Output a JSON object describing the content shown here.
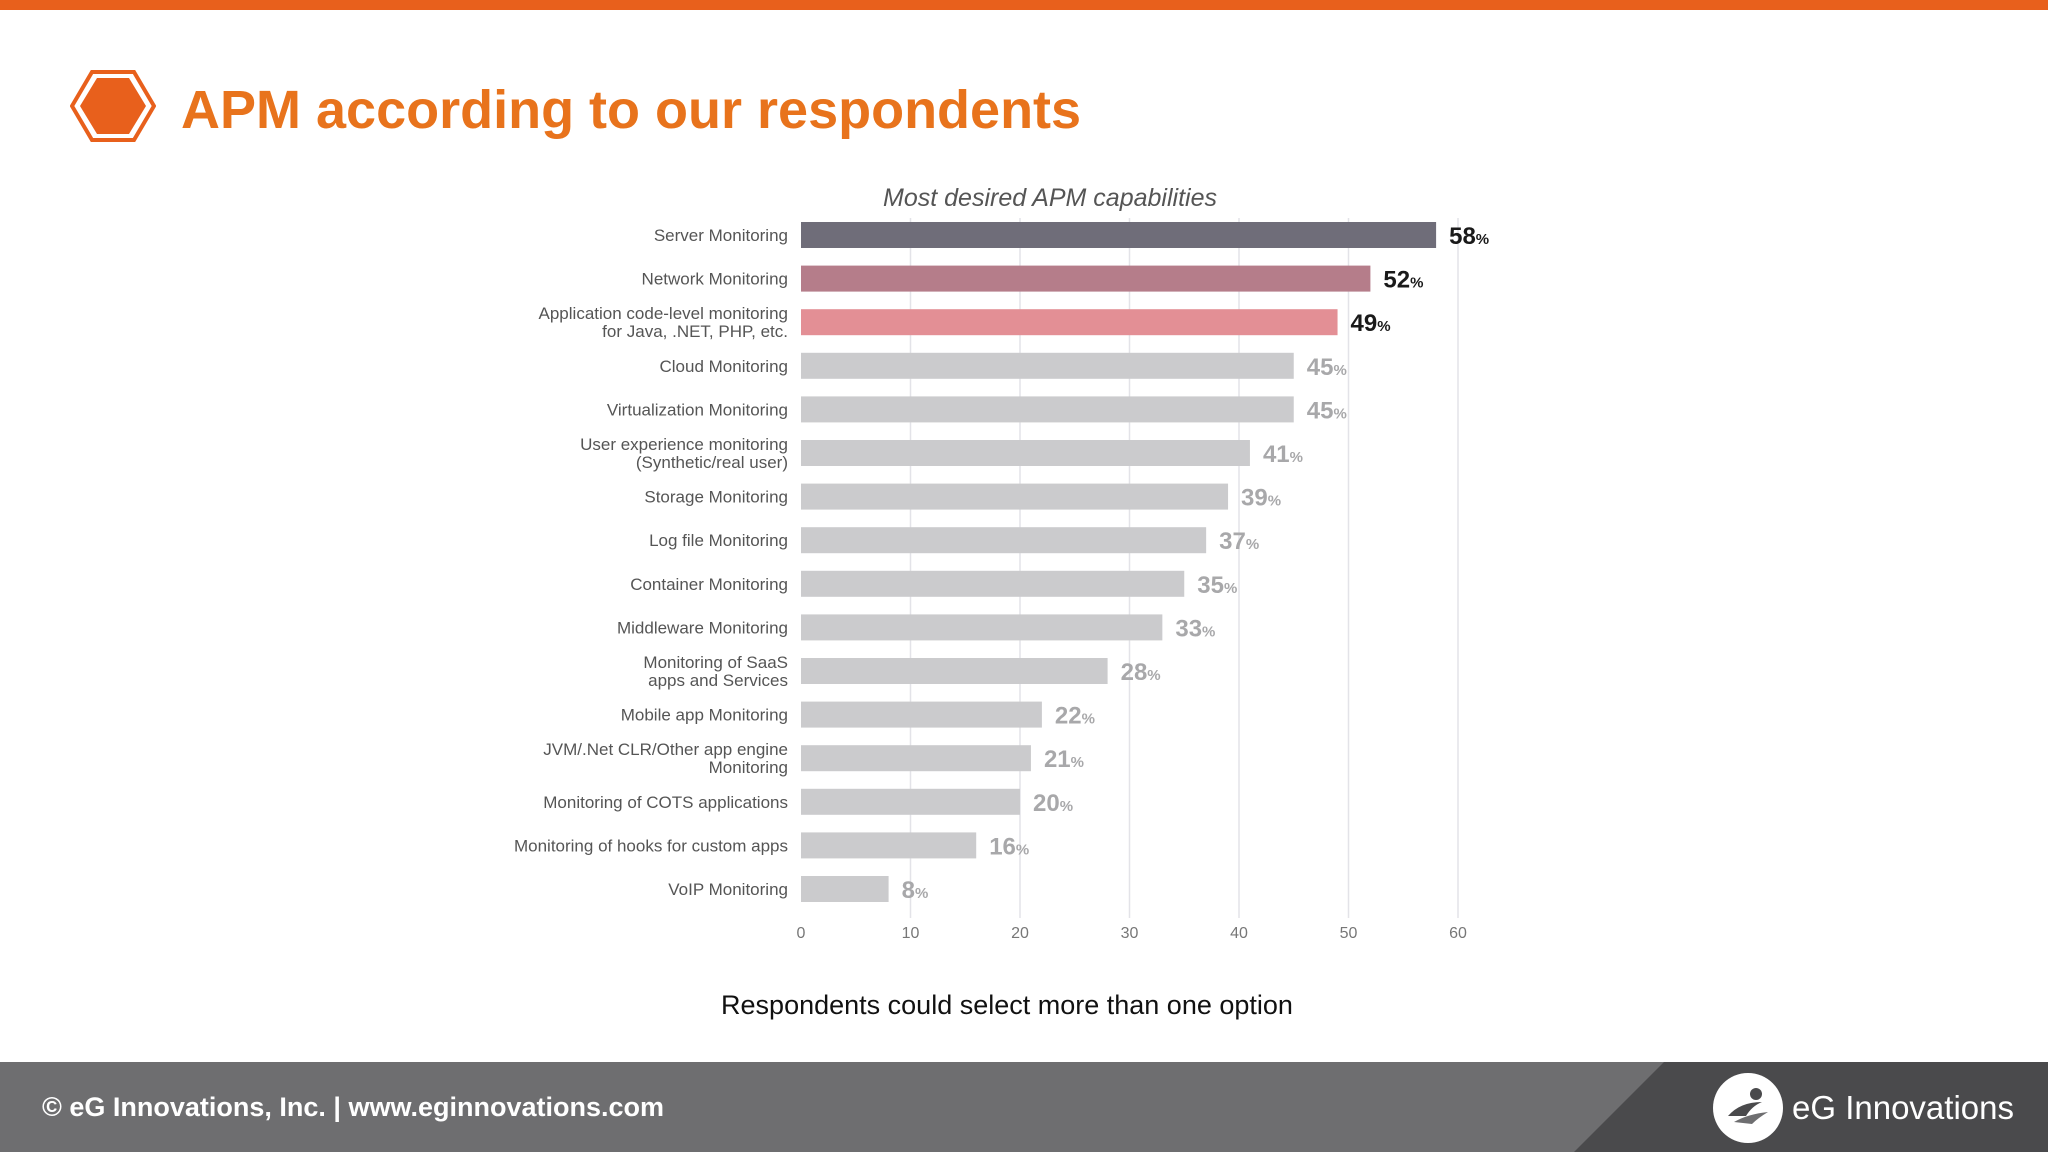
{
  "header": {
    "title": "APM according to our respondents",
    "icon": "hexagon-icon",
    "accent_color": "#e8601c"
  },
  "chart_data": {
    "type": "bar",
    "orientation": "horizontal",
    "title": "Most desired APM capabilities",
    "categories": [
      [
        "Server Monitoring"
      ],
      [
        "Network Monitoring"
      ],
      [
        "Application code-level monitoring",
        "for Java, .NET, PHP, etc."
      ],
      [
        "Cloud Monitoring"
      ],
      [
        "Virtualization Monitoring"
      ],
      [
        "User experience monitoring",
        "(Synthetic/real user)"
      ],
      [
        "Storage Monitoring"
      ],
      [
        "Log file Monitoring"
      ],
      [
        "Container Monitoring"
      ],
      [
        "Middleware Monitoring"
      ],
      [
        "Monitoring of SaaS",
        "apps and Services"
      ],
      [
        "Mobile app Monitoring"
      ],
      [
        "JVM/.Net CLR/Other app engine",
        "Monitoring"
      ],
      [
        "Monitoring of COTS applications"
      ],
      [
        "Monitoring of hooks for custom apps"
      ],
      [
        "VoIP Monitoring"
      ]
    ],
    "values": [
      58,
      52,
      49,
      45,
      45,
      41,
      39,
      37,
      35,
      33,
      28,
      22,
      21,
      20,
      16,
      8
    ],
    "value_suffix": "%",
    "xlim": [
      0,
      60
    ],
    "xticks": [
      0,
      10,
      20,
      30,
      40,
      50,
      60
    ],
    "grid": "vertical",
    "legend": "none",
    "bar_colors": [
      "#6f6d79",
      "#b57d8a",
      "#e38f95",
      "#cbcbcd",
      "#cbcbcd",
      "#cbcbcd",
      "#cbcbcd",
      "#cbcbcd",
      "#cbcbcd",
      "#cbcbcd",
      "#cbcbcd",
      "#cbcbcd",
      "#cbcbcd",
      "#cbcbcd",
      "#cbcbcd",
      "#cbcbcd"
    ],
    "label_colors": [
      "#1a1a1a",
      "#1a1a1a",
      "#1a1a1a",
      "#a8a8aa",
      "#a8a8aa",
      "#a8a8aa",
      "#a8a8aa",
      "#a8a8aa",
      "#a8a8aa",
      "#a8a8aa",
      "#a8a8aa",
      "#a8a8aa",
      "#a8a8aa",
      "#a8a8aa",
      "#a8a8aa",
      "#a8a8aa"
    ]
  },
  "note": "Respondents could select more than one option",
  "footer": {
    "copyright": "© eG Innovations, Inc.  |  www.eginnovations.com",
    "brand_name": "eG Innovations",
    "logo_icon": "eg-logo-icon"
  }
}
